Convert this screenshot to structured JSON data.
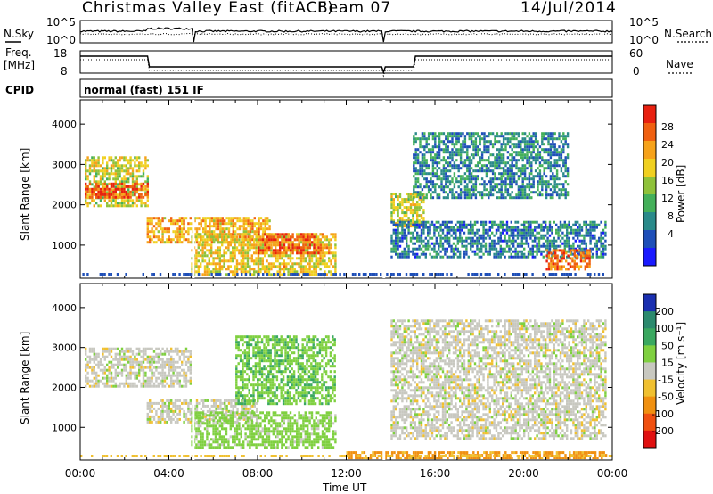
{
  "header": {
    "station": "Christmas Valley East (fitACF)",
    "beam": "Beam 07",
    "date": "14/Jul/2014"
  },
  "noise_panel": {
    "left_label": "N.Sky",
    "right_label": "N.Search",
    "left_ticks": [
      "10^5",
      "10^0"
    ],
    "right_ticks": [
      "10^5",
      "10^0"
    ]
  },
  "freq_panel": {
    "left_label_1": "Freq.",
    "left_label_2": "[MHz]",
    "right_label": "Nave",
    "left_ticks": [
      "18",
      "8"
    ],
    "right_ticks": [
      "60",
      "0"
    ]
  },
  "cpid": {
    "label": "CPID",
    "text": "normal (fast) 151 IF"
  },
  "chart_data": [
    {
      "type": "heatmap",
      "quantity": "Power",
      "ylabel": "Slant Range [km]",
      "xlabel": "Time UT",
      "x_ticks": [
        "00:00",
        "04:00",
        "08:00",
        "12:00",
        "16:00",
        "20:00",
        "00:00"
      ],
      "y_ticks": [
        "1000",
        "2000",
        "3000",
        "4000"
      ],
      "ylim": [
        180,
        4600
      ],
      "colorbar": {
        "label": "Power [dB]",
        "ticks": [
          "4",
          "8",
          "12",
          "16",
          "20",
          "24",
          "28"
        ],
        "colors": [
          "#1a1aff",
          "#1e4fb8",
          "#2a8a8a",
          "#44b05a",
          "#8fc23a",
          "#f0d020",
          "#f6a21a",
          "#f06010",
          "#e82010"
        ]
      },
      "regions": [
        {
          "t0": 0.2,
          "t1": 3.0,
          "r0": 2000,
          "r1": 3200,
          "level": 18
        },
        {
          "t0": 0.2,
          "t1": 3.0,
          "r0": 2200,
          "r1": 2550,
          "level": 27
        },
        {
          "t0": 3.0,
          "t1": 8.5,
          "r0": 1100,
          "r1": 1700,
          "level": 22
        },
        {
          "t0": 5.0,
          "t1": 11.5,
          "r0": 300,
          "r1": 1300,
          "level": 20
        },
        {
          "t0": 8.0,
          "t1": 10.8,
          "r0": 800,
          "r1": 1300,
          "level": 27
        },
        {
          "t0": 14.0,
          "t1": 15.5,
          "r0": 1500,
          "r1": 2300,
          "level": 18
        },
        {
          "t0": 15.0,
          "t1": 22.0,
          "r0": 2200,
          "r1": 3800,
          "level": 9
        },
        {
          "t0": 14.0,
          "t1": 23.7,
          "r0": 700,
          "r1": 1600,
          "level": 8
        },
        {
          "t0": 21.0,
          "t1": 23.0,
          "r0": 400,
          "r1": 900,
          "level": 26
        }
      ]
    },
    {
      "type": "heatmap",
      "quantity": "Velocity",
      "ylabel": "Slant Range [km]",
      "xlabel": "Time UT",
      "x_ticks": [
        "00:00",
        "04:00",
        "08:00",
        "12:00",
        "16:00",
        "20:00",
        "00:00"
      ],
      "y_ticks": [
        "1000",
        "2000",
        "3000",
        "4000"
      ],
      "ylim": [
        180,
        4600
      ],
      "colorbar": {
        "label": "Velocity [m s⁻¹]",
        "ticks": [
          "200",
          "100",
          "50",
          "15",
          "-15",
          "-50",
          "-100",
          "-200"
        ],
        "colors": [
          "#1a2fb0",
          "#2c8a6e",
          "#3aa860",
          "#7fd040",
          "#c8c8c0",
          "#f0c030",
          "#f09010",
          "#f05010",
          "#e01010"
        ]
      },
      "regions": [
        {
          "t0": 0.2,
          "t1": 5.0,
          "r0": 2000,
          "r1": 3000,
          "v": 0
        },
        {
          "t0": 3.0,
          "t1": 8.0,
          "r0": 1100,
          "r1": 1700,
          "v": 0
        },
        {
          "t0": 5.0,
          "t1": 11.5,
          "r0": 500,
          "r1": 1400,
          "v": 30
        },
        {
          "t0": 7.0,
          "t1": 11.5,
          "r0": 1600,
          "r1": 3300,
          "v": 40
        },
        {
          "t0": 14.0,
          "t1": 23.7,
          "r0": 700,
          "r1": 3700,
          "v": 0
        },
        {
          "t0": 12.0,
          "t1": 23.7,
          "r0": 200,
          "r1": 400,
          "v": -60
        }
      ]
    }
  ]
}
